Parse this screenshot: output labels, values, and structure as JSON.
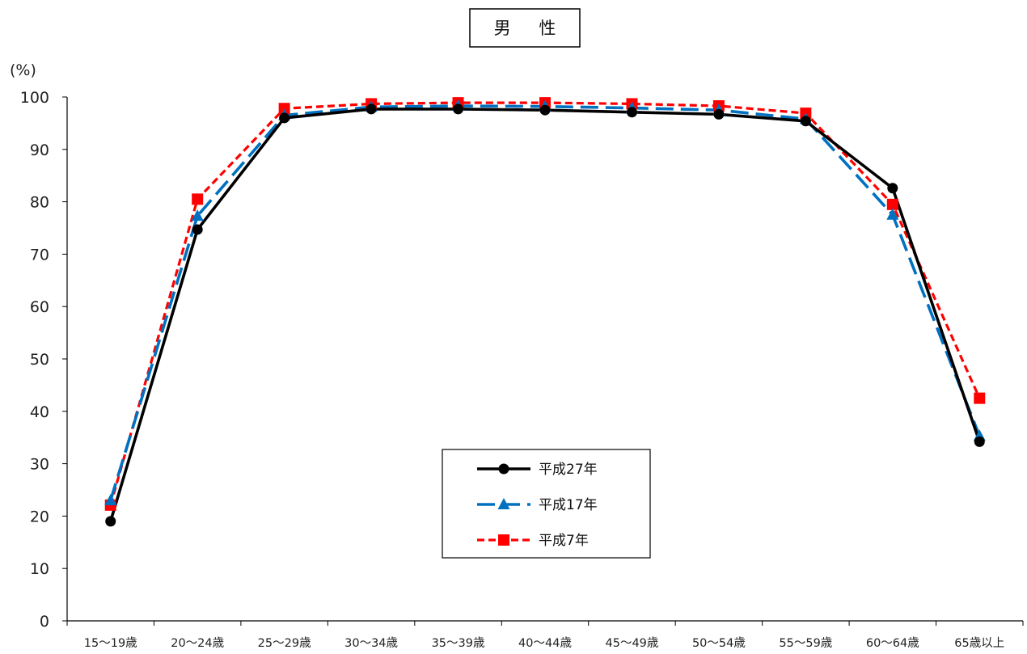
{
  "chart_data": {
    "type": "line",
    "title": "男 性",
    "ylabel": "(%)",
    "xlabel": "",
    "ylim": [
      0,
      100
    ],
    "yticks": [
      "0",
      "10",
      "20",
      "30",
      "40",
      "50",
      "60",
      "70",
      "80",
      "90",
      "100"
    ],
    "categories": [
      "15～19歳",
      "20～24歳",
      "25～29歳",
      "30～34歳",
      "35～39歳",
      "40～44歳",
      "45～49歳",
      "50～54歳",
      "55～59歳",
      "60～64歳",
      "65歳以上"
    ],
    "legend_position": "bottom-center",
    "grid": false,
    "series": [
      {
        "name": "平成27年",
        "color": "#000000",
        "marker": "circle",
        "dash": "solid",
        "values": [
          19.0,
          74.7,
          96.0,
          97.7,
          97.7,
          97.5,
          97.1,
          96.7,
          95.4,
          82.6,
          34.2
        ]
      },
      {
        "name": "平成17年",
        "color": "#0070C0",
        "marker": "triangle",
        "dash": "longdash",
        "values": [
          23.0,
          77.3,
          96.5,
          98.1,
          98.3,
          98.2,
          97.9,
          97.5,
          95.8,
          77.5,
          35.3
        ]
      },
      {
        "name": "平成7年",
        "color": "#FF0000",
        "marker": "square",
        "dash": "shortdash",
        "values": [
          22.1,
          80.5,
          97.8,
          98.7,
          98.9,
          98.9,
          98.7,
          98.3,
          96.9,
          79.5,
          42.5
        ]
      }
    ]
  }
}
